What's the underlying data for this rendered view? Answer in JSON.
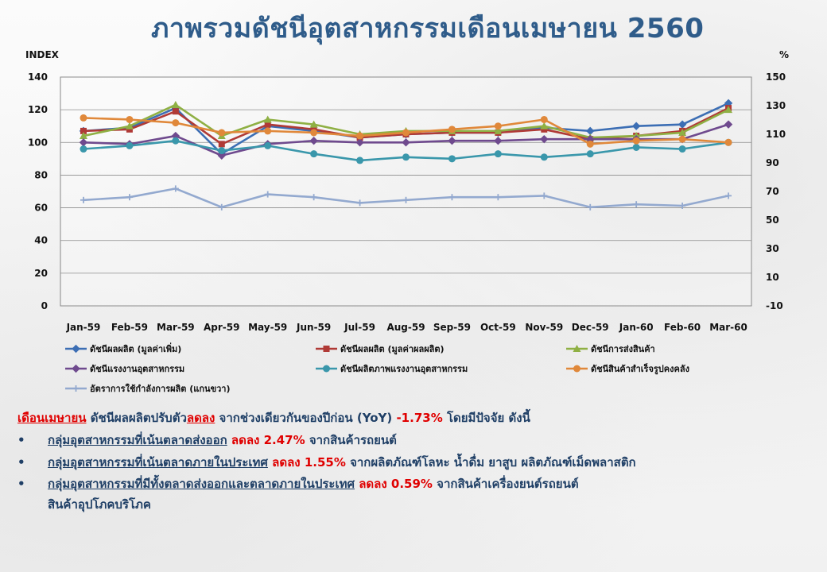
{
  "title": "ภาพรวมดัชนีอุตสาหกรรมเดือนเมษายน 2560",
  "colors": {
    "title": "#2f5c8a",
    "text": "#1f3f66",
    "highlight": "#e00000"
  },
  "chart_data": {
    "type": "line",
    "left_axis_label": "INDEX",
    "right_axis_label": "%",
    "left_ylim": [
      0,
      140
    ],
    "left_ticks": [
      0,
      20,
      40,
      60,
      80,
      100,
      120,
      140
    ],
    "right_ylim": [
      -10,
      150
    ],
    "right_ticks": [
      -10,
      10,
      30,
      50,
      70,
      90,
      110,
      130,
      150
    ],
    "grid": true,
    "legend_position": "bottom",
    "categories": [
      "Jan-59",
      "Feb-59",
      "Mar-59",
      "Apr-59",
      "May-59",
      "Jun-59",
      "Jul-59",
      "Aug-59",
      "Sep-59",
      "Oct-59",
      "Nov-59",
      "Dec-59",
      "Jan-60",
      "Feb-60",
      "Mar-60"
    ],
    "series": [
      {
        "name": "ดัชนีผลผลิต (มูลค่าเพิ่ม)",
        "axis": "left",
        "color": "#3c6eb4",
        "marker": "diamond",
        "values": [
          107,
          109,
          121,
          93,
          110,
          107,
          103,
          105,
          106,
          106,
          109,
          107,
          110,
          111,
          124
        ]
      },
      {
        "name": "ดัชนีผลผลิต (มูลค่าผลผลิต)",
        "axis": "left",
        "color": "#b03a36",
        "marker": "square",
        "values": [
          107,
          108,
          119,
          99,
          111,
          108,
          103,
          105,
          106,
          106,
          108,
          102,
          104,
          107,
          121
        ]
      },
      {
        "name": "ดัชนีการส่งสินค้า",
        "axis": "left",
        "color": "#8fb044",
        "marker": "triangle",
        "values": [
          104,
          110,
          123,
          104,
          114,
          111,
          105,
          107,
          107,
          107,
          110,
          103,
          104,
          106,
          120
        ]
      },
      {
        "name": "ดัชนีแรงงานอุตสาหกรรม",
        "axis": "left",
        "color": "#6f4a8e",
        "marker": "diamond",
        "values": [
          100,
          99,
          104,
          92,
          99,
          101,
          100,
          100,
          101,
          101,
          102,
          102,
          102,
          102,
          111
        ]
      },
      {
        "name": "ดัชนีผลิตภาพแรงงานอุตสาหกรรม",
        "axis": "left",
        "color": "#3a97ab",
        "marker": "circle",
        "values": [
          96,
          98,
          101,
          95,
          98,
          93,
          89,
          91,
          90,
          93,
          91,
          93,
          97,
          96,
          100
        ]
      },
      {
        "name": "ดัชนีสินค้าสำเร็จรูปคงคลัง",
        "axis": "left",
        "color": "#e0883a",
        "marker": "circle",
        "values": [
          115,
          114,
          112,
          106,
          107,
          106,
          104,
          106,
          108,
          110,
          114,
          99,
          101,
          102,
          100
        ]
      },
      {
        "name": "อัตราการใช้กำลังการผลิต (แกนขวา)",
        "axis": "right",
        "color": "#93a9cf",
        "marker": "plus",
        "values": [
          64,
          66,
          72,
          59,
          68,
          66,
          62,
          64,
          66,
          66,
          67,
          59,
          61,
          60,
          67
        ]
      }
    ]
  },
  "summary": {
    "lead_month": "เดือนเมษายน",
    "lead_text1": " ดัชนีผลผลิตปรับตัว",
    "lead_down": "ลดลง",
    "lead_text2": "  จากช่วงเดียวกันของปีก่อน (YoY) ",
    "lead_value": "-1.73%",
    "lead_text3": " โดยมีปัจจัย ดังนี้",
    "bullet_symbol": "•",
    "bullets": [
      {
        "group": "กลุ่มอุตสาหกรรมที่เน้นตลาดส่งออก",
        "change": " ลดลง 2.47%",
        "detail": " จากสินค้ารถยนต์"
      },
      {
        "group": "กลุ่มอุตสาหกรรมที่เน้นตลาดภายในประเทศ",
        "change": " ลดลง 1.55%",
        "detail": " จากผลิตภัณฑ์โลหะ น้ำดื่ม ยาสูบ ผลิตภัณฑ์เม็ดพลาสติก"
      },
      {
        "group": "กลุ่มอุตสาหกรรมที่มีทั้งตลาดส่งออกและตลาดภายในประเทศ",
        "change": " ลดลง 0.59%",
        "detail": " จากสินค้าเครื่องยนต์รถยนต์"
      }
    ],
    "continuation": "สินค้าอุปโภคบริโภค"
  }
}
